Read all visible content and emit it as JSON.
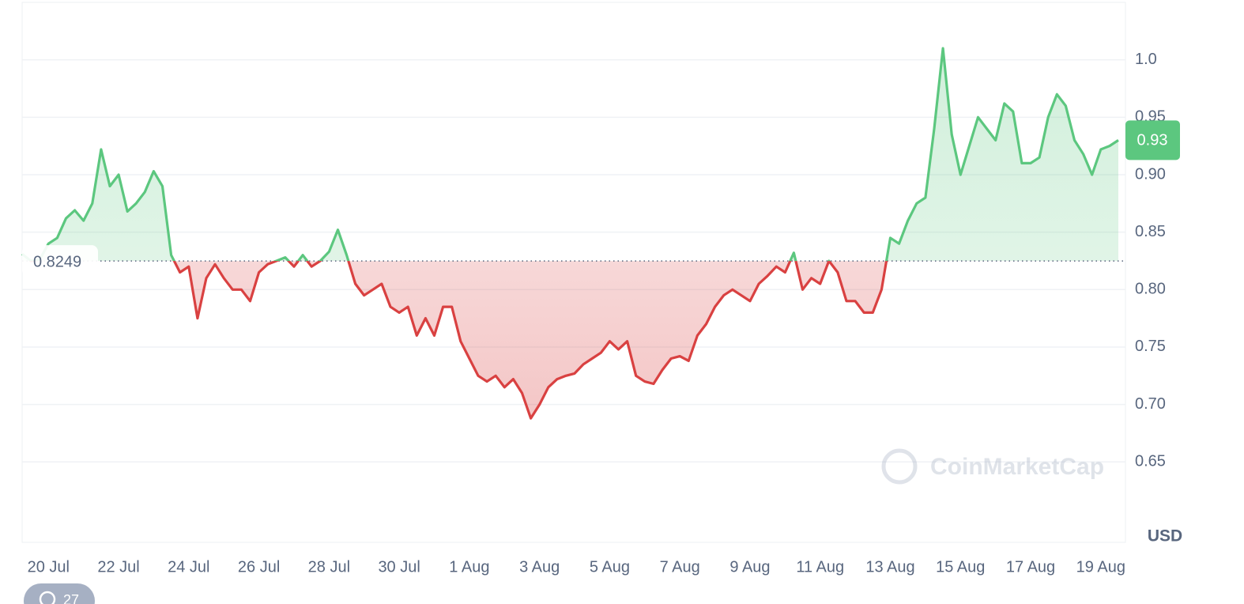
{
  "chart_data": {
    "type": "line",
    "categories": [
      null,
      null,
      null,
      "20 Jul",
      null,
      null,
      null,
      null,
      null,
      null,
      null,
      "22 Jul",
      null,
      null,
      null,
      null,
      null,
      null,
      null,
      "24 Jul",
      null,
      null,
      null,
      null,
      null,
      null,
      null,
      "26 Jul",
      null,
      null,
      null,
      null,
      null,
      null,
      null,
      "28 Jul",
      null,
      null,
      null,
      null,
      null,
      null,
      null,
      "30 Jul",
      null,
      null,
      null,
      null,
      null,
      null,
      null,
      "1 Aug",
      null,
      null,
      null,
      null,
      null,
      null,
      null,
      "3 Aug",
      null,
      null,
      null,
      null,
      null,
      null,
      null,
      "5 Aug",
      null,
      null,
      null,
      null,
      null,
      null,
      null,
      "7 Aug",
      null,
      null,
      null,
      null,
      null,
      null,
      null,
      "9 Aug",
      null,
      null,
      null,
      null,
      null,
      null,
      null,
      "11 Aug",
      null,
      null,
      null,
      null,
      null,
      null,
      null,
      "13 Aug",
      null,
      null,
      null,
      null,
      null,
      null,
      null,
      "15 Aug",
      null,
      null,
      null,
      null,
      null,
      null,
      null,
      "17 Aug",
      null,
      null,
      null,
      null,
      null,
      null,
      null,
      "19 Aug",
      null,
      null
    ],
    "values": [
      0.831,
      0.825,
      0.826,
      0.84,
      0.845,
      0.862,
      0.869,
      0.86,
      0.875,
      0.922,
      0.89,
      0.9,
      0.868,
      0.875,
      0.885,
      0.903,
      0.89,
      0.83,
      0.815,
      0.82,
      0.775,
      0.81,
      0.822,
      0.81,
      0.8,
      0.8,
      0.79,
      0.815,
      0.822,
      0.825,
      0.828,
      0.82,
      0.83,
      0.82,
      0.825,
      0.833,
      0.852,
      0.83,
      0.805,
      0.795,
      0.8,
      0.805,
      0.785,
      0.78,
      0.785,
      0.76,
      0.775,
      0.76,
      0.785,
      0.785,
      0.755,
      0.74,
      0.725,
      0.72,
      0.725,
      0.715,
      0.722,
      0.71,
      0.688,
      0.7,
      0.715,
      0.722,
      0.725,
      0.727,
      0.735,
      0.74,
      0.745,
      0.755,
      0.748,
      0.755,
      0.725,
      0.72,
      0.718,
      0.73,
      0.74,
      0.742,
      0.738,
      0.76,
      0.77,
      0.785,
      0.795,
      0.8,
      0.795,
      0.79,
      0.805,
      0.812,
      0.82,
      0.815,
      0.832,
      0.8,
      0.81,
      0.805,
      0.825,
      0.815,
      0.79,
      0.79,
      0.78,
      0.78,
      0.8,
      0.845,
      0.84,
      0.86,
      0.875,
      0.88,
      0.94,
      1.01,
      0.935,
      0.9,
      0.925,
      0.95,
      0.94,
      0.93,
      0.962,
      0.955,
      0.91,
      0.91,
      0.915,
      0.95,
      0.97,
      0.96,
      0.93,
      0.918,
      0.9,
      0.922,
      0.925,
      0.93
    ],
    "baseline": 0.8249,
    "current_price": 0.93,
    "up_color": "#5cc77f",
    "down_color": "#d94141",
    "ylim": [
      0.58,
      1.05
    ],
    "yticks": [
      0.65,
      {
        "value": 0.7,
        "label": "0.70"
      },
      0.75,
      {
        "value": 0.8,
        "label": "0.80"
      },
      0.85,
      {
        "value": 0.9,
        "label": "0.90"
      },
      0.95,
      {
        "value": 1.0,
        "label": "1.0"
      }
    ],
    "grid": true,
    "currency": "USD",
    "watermark": "CoinMarketCap",
    "history_count": 27
  }
}
